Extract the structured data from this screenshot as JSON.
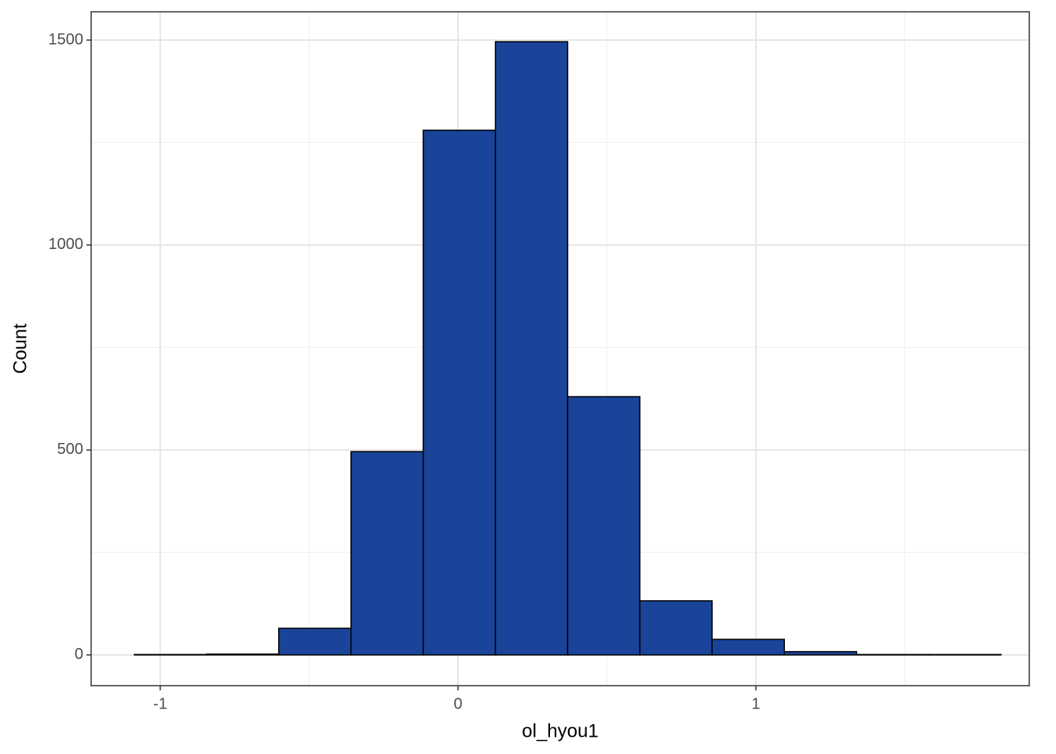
{
  "chart_data": {
    "type": "histogram",
    "x_label": "ol_hyou1",
    "y_label": "Count",
    "bins": [
      -1.087,
      -0.8445,
      -0.602,
      -0.3595,
      -0.117,
      0.1255,
      0.368,
      0.6105,
      0.853,
      1.0955,
      1.338,
      1.5805,
      1.823
    ],
    "values": [
      1,
      2,
      65,
      496,
      1280,
      1496,
      630,
      132,
      38,
      8,
      1,
      1
    ],
    "color": "#1a449a",
    "edge_color": "#000000",
    "xlim": [
      -1.232,
      1.918
    ],
    "ylim": [
      -75,
      1569
    ],
    "xticks": [
      -1,
      0,
      1
    ],
    "yticks": [
      0,
      500,
      1000,
      1500
    ],
    "xminor": [
      -0.5,
      0.5,
      1.5
    ],
    "yminor": [
      250,
      750,
      1250
    ],
    "grid": true
  }
}
